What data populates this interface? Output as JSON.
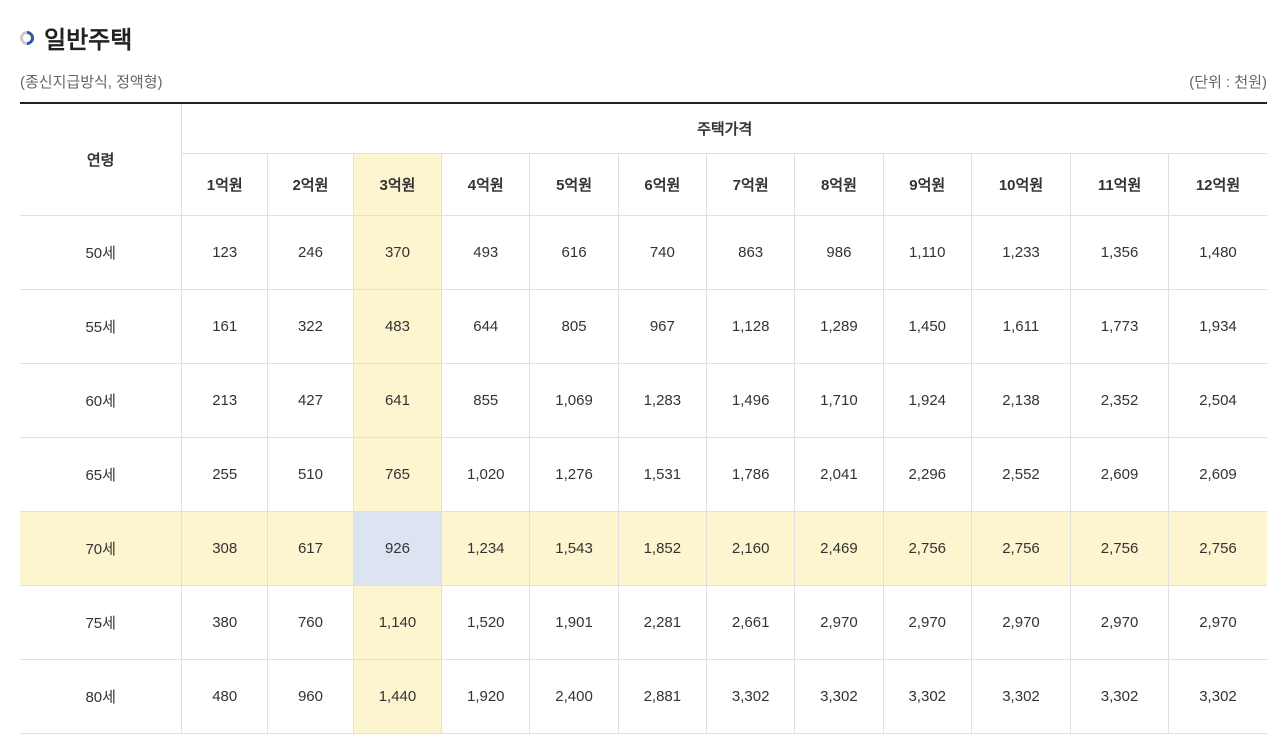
{
  "page": {
    "title": "일반주택",
    "subtitle": "(종신지급방식, 정액형)",
    "unit_label": "(단위 : 천원)"
  },
  "table": {
    "row_header_label": "연령",
    "col_group_label": "주택가격",
    "columns": [
      "1억원",
      "2억원",
      "3억원",
      "4억원",
      "5억원",
      "6억원",
      "7억원",
      "8억원",
      "9억원",
      "10억원",
      "11억원",
      "12억원"
    ],
    "highlight_col_index": 2,
    "highlight_row_index": 4,
    "col_highlight_bg": "#fdf5d0",
    "row_highlight_bg": "#fdf5d0",
    "intersection_bg": "#dce4f2",
    "rows": [
      {
        "label": "50세",
        "values": [
          "123",
          "246",
          "370",
          "493",
          "616",
          "740",
          "863",
          "986",
          "1,110",
          "1,233",
          "1,356",
          "1,480"
        ]
      },
      {
        "label": "55세",
        "values": [
          "161",
          "322",
          "483",
          "644",
          "805",
          "967",
          "1,128",
          "1,289",
          "1,450",
          "1,611",
          "1,773",
          "1,934"
        ]
      },
      {
        "label": "60세",
        "values": [
          "213",
          "427",
          "641",
          "855",
          "1,069",
          "1,283",
          "1,496",
          "1,710",
          "1,924",
          "2,138",
          "2,352",
          "2,504"
        ]
      },
      {
        "label": "65세",
        "values": [
          "255",
          "510",
          "765",
          "1,020",
          "1,276",
          "1,531",
          "1,786",
          "2,041",
          "2,296",
          "2,552",
          "2,609",
          "2,609"
        ]
      },
      {
        "label": "70세",
        "values": [
          "308",
          "617",
          "926",
          "1,234",
          "1,543",
          "1,852",
          "2,160",
          "2,469",
          "2,756",
          "2,756",
          "2,756",
          "2,756"
        ]
      },
      {
        "label": "75세",
        "values": [
          "380",
          "760",
          "1,140",
          "1,520",
          "1,901",
          "2,281",
          "2,661",
          "2,970",
          "2,970",
          "2,970",
          "2,970",
          "2,970"
        ]
      },
      {
        "label": "80세",
        "values": [
          "480",
          "960",
          "1,440",
          "1,920",
          "2,400",
          "2,881",
          "3,302",
          "3,302",
          "3,302",
          "3,302",
          "3,302",
          "3,302"
        ]
      }
    ]
  },
  "style": {
    "border_color": "#e0e0e0",
    "top_border_color": "#222222",
    "text_color": "#333333",
    "muted_text_color": "#666666",
    "title_color": "#222222",
    "background_color": "#ffffff"
  }
}
